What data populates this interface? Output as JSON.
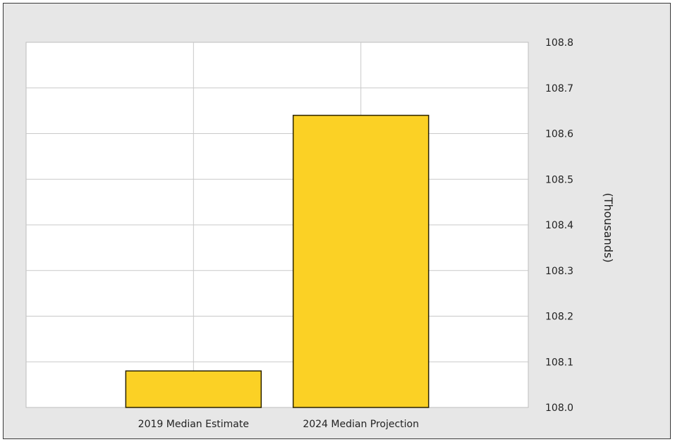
{
  "chart_data": {
    "type": "bar",
    "title": "",
    "xlabel": "",
    "ylabel": "(Thousands)",
    "categories": [
      "2019 Median Estimate",
      "2024 Median Projection"
    ],
    "values": [
      108.08,
      108.64
    ],
    "ylim": [
      108.0,
      108.8
    ],
    "yticks": [
      "108.0",
      "108.1",
      "108.2",
      "108.3",
      "108.4",
      "108.5",
      "108.6",
      "108.7",
      "108.8"
    ],
    "y_axis_side": "right",
    "grid": true,
    "legend": "none",
    "colors": {
      "bar_fill": "#fbd125",
      "bar_stroke": "#2a2200",
      "plot_background": "#ffffff",
      "grid": "#c9c9c9",
      "frame_background": "#e7e7e7"
    }
  }
}
